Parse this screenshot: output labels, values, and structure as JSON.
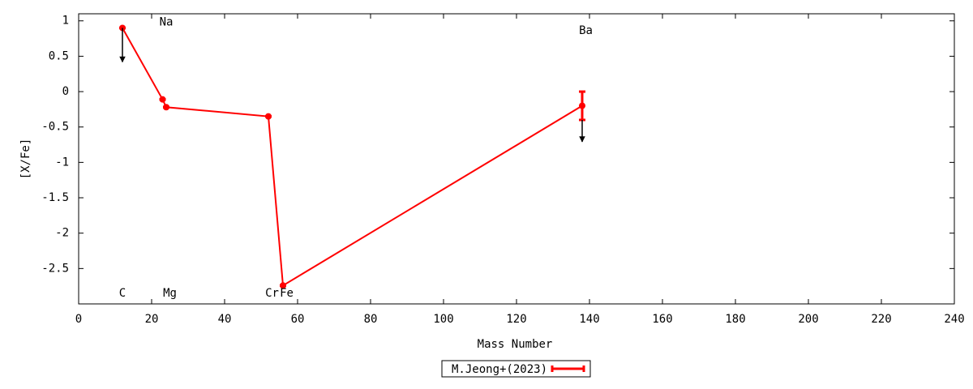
{
  "chart_data": {
    "type": "errorline",
    "x_label": "Mass Number",
    "y_label": "[X/Fe]",
    "xlim": [
      0,
      240
    ],
    "xticks": [
      0,
      20,
      40,
      60,
      80,
      100,
      120,
      140,
      160,
      180,
      200,
      220,
      240
    ],
    "ylim": [
      -3,
      1.1
    ],
    "yticks": [
      1,
      0.5,
      0,
      -0.5,
      -1,
      -1.5,
      -2,
      -2.5
    ],
    "series": [
      {
        "name": "M.Jeong+(2023)",
        "color": "#ff0000",
        "x": [
          12,
          23,
          24,
          52,
          56,
          138
        ],
        "values": [
          0.9,
          -0.11,
          -0.22,
          -0.35,
          -2.74,
          -0.2
        ],
        "errors": [
          0,
          0,
          0,
          0,
          0,
          0.2
        ],
        "upper_limits": [
          true,
          false,
          false,
          false,
          false,
          true
        ]
      }
    ],
    "annotations": [
      {
        "text": "C",
        "x": 12,
        "y": -2.85
      },
      {
        "text": "Na",
        "x": 24,
        "y": 0.98
      },
      {
        "text": "Mg",
        "x": 25,
        "y": -2.85
      },
      {
        "text": "Cr",
        "x": 53,
        "y": -2.85
      },
      {
        "text": "Fe",
        "x": 57,
        "y": -2.85
      },
      {
        "text": "Ba",
        "x": 139,
        "y": 0.86
      }
    ],
    "legend": "bottom"
  }
}
